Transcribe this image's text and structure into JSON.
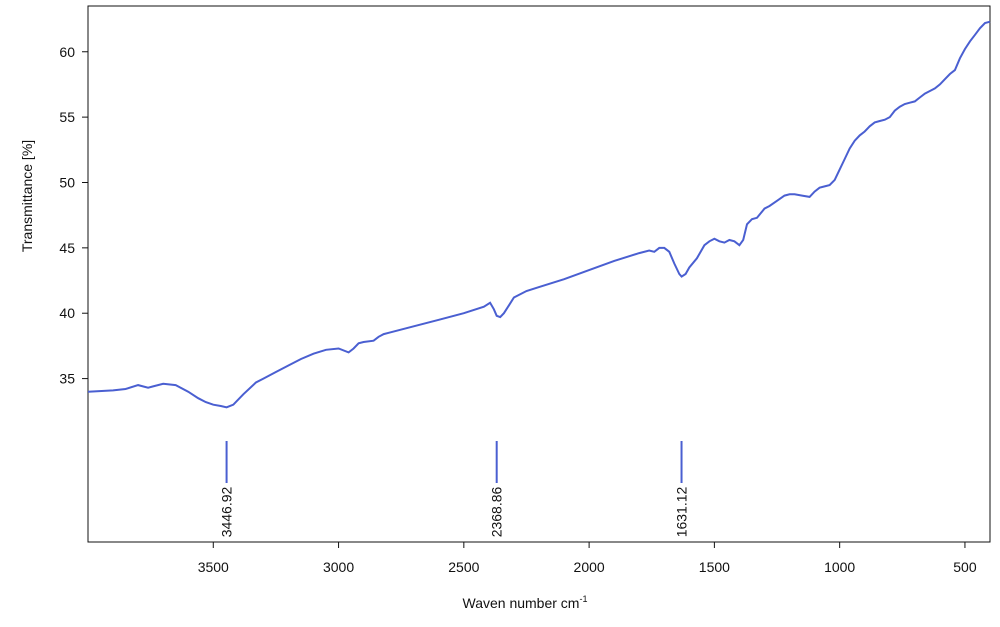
{
  "chart_data": {
    "type": "line",
    "title": "",
    "xlabel": "Waven number cm",
    "xlabel_superscript": "-1",
    "ylabel": "Transmittance [%]",
    "xlim": [
      4000,
      400
    ],
    "ylim": [
      22.5,
      63.5
    ],
    "x_reversed": true,
    "grid": false,
    "x_ticks": [
      {
        "value": 3500,
        "label": "3500"
      },
      {
        "value": 3000,
        "label": "3000"
      },
      {
        "value": 2500,
        "label": "2500"
      },
      {
        "value": 2000,
        "label": "2000"
      },
      {
        "value": 1500,
        "label": "1500"
      },
      {
        "value": 1000,
        "label": "1000"
      },
      {
        "value": 500,
        "label": "500"
      }
    ],
    "y_ticks": [
      {
        "value": 35,
        "label": "35"
      },
      {
        "value": 40,
        "label": "40"
      },
      {
        "value": 45,
        "label": "45"
      },
      {
        "value": 50,
        "label": "50"
      },
      {
        "value": 55,
        "label": "55"
      },
      {
        "value": 60,
        "label": "60"
      }
    ],
    "series": [
      {
        "color": "#4a5fd1",
        "x": [
          4000,
          3900,
          3850,
          3800,
          3760,
          3740,
          3700,
          3650,
          3600,
          3560,
          3530,
          3500,
          3470,
          3447,
          3420,
          3380,
          3330,
          3300,
          3250,
          3200,
          3150,
          3100,
          3050,
          3000,
          2960,
          2940,
          2920,
          2900,
          2860,
          2840,
          2820,
          2800,
          2700,
          2600,
          2500,
          2420,
          2395,
          2380,
          2369,
          2355,
          2340,
          2320,
          2300,
          2250,
          2200,
          2100,
          2000,
          1900,
          1800,
          1760,
          1740,
          1720,
          1700,
          1680,
          1660,
          1640,
          1631,
          1615,
          1600,
          1570,
          1540,
          1520,
          1500,
          1480,
          1460,
          1440,
          1420,
          1400,
          1385,
          1370,
          1350,
          1330,
          1300,
          1280,
          1250,
          1220,
          1200,
          1180,
          1150,
          1120,
          1100,
          1080,
          1060,
          1040,
          1020,
          1000,
          980,
          960,
          940,
          920,
          900,
          880,
          860,
          840,
          820,
          800,
          780,
          760,
          740,
          720,
          700,
          680,
          660,
          640,
          620,
          600,
          580,
          560,
          540,
          520,
          500,
          480,
          460,
          440,
          420,
          400
        ],
        "y": [
          34.0,
          34.1,
          34.2,
          34.5,
          34.3,
          34.4,
          34.6,
          34.5,
          34.0,
          33.5,
          33.2,
          33.0,
          32.9,
          32.8,
          33.0,
          33.8,
          34.7,
          35.0,
          35.5,
          36.0,
          36.5,
          36.9,
          37.2,
          37.3,
          37.0,
          37.3,
          37.7,
          37.8,
          37.9,
          38.2,
          38.4,
          38.5,
          39.0,
          39.5,
          40.0,
          40.5,
          40.8,
          40.3,
          39.8,
          39.7,
          40.0,
          40.6,
          41.2,
          41.7,
          42.0,
          42.6,
          43.3,
          44.0,
          44.6,
          44.8,
          44.7,
          45.0,
          45.0,
          44.7,
          43.8,
          43.0,
          42.8,
          43.0,
          43.5,
          44.2,
          45.2,
          45.5,
          45.7,
          45.5,
          45.4,
          45.6,
          45.5,
          45.2,
          45.6,
          46.8,
          47.2,
          47.3,
          48.0,
          48.2,
          48.6,
          49.0,
          49.1,
          49.1,
          49.0,
          48.9,
          49.3,
          49.6,
          49.7,
          49.8,
          50.2,
          51.0,
          51.8,
          52.6,
          53.2,
          53.6,
          53.9,
          54.3,
          54.6,
          54.7,
          54.8,
          55.0,
          55.5,
          55.8,
          56.0,
          56.1,
          56.2,
          56.5,
          56.8,
          57.0,
          57.2,
          57.5,
          57.9,
          58.3,
          58.6,
          59.5,
          60.2,
          60.8,
          61.3,
          61.8,
          62.2,
          62.3
        ],
        "peak_labels": [
          {
            "x": 3446.92,
            "label": "3446.92"
          },
          {
            "x": 2368.86,
            "label": "2368.86"
          },
          {
            "x": 1631.12,
            "label": "1631.12"
          }
        ]
      }
    ]
  }
}
